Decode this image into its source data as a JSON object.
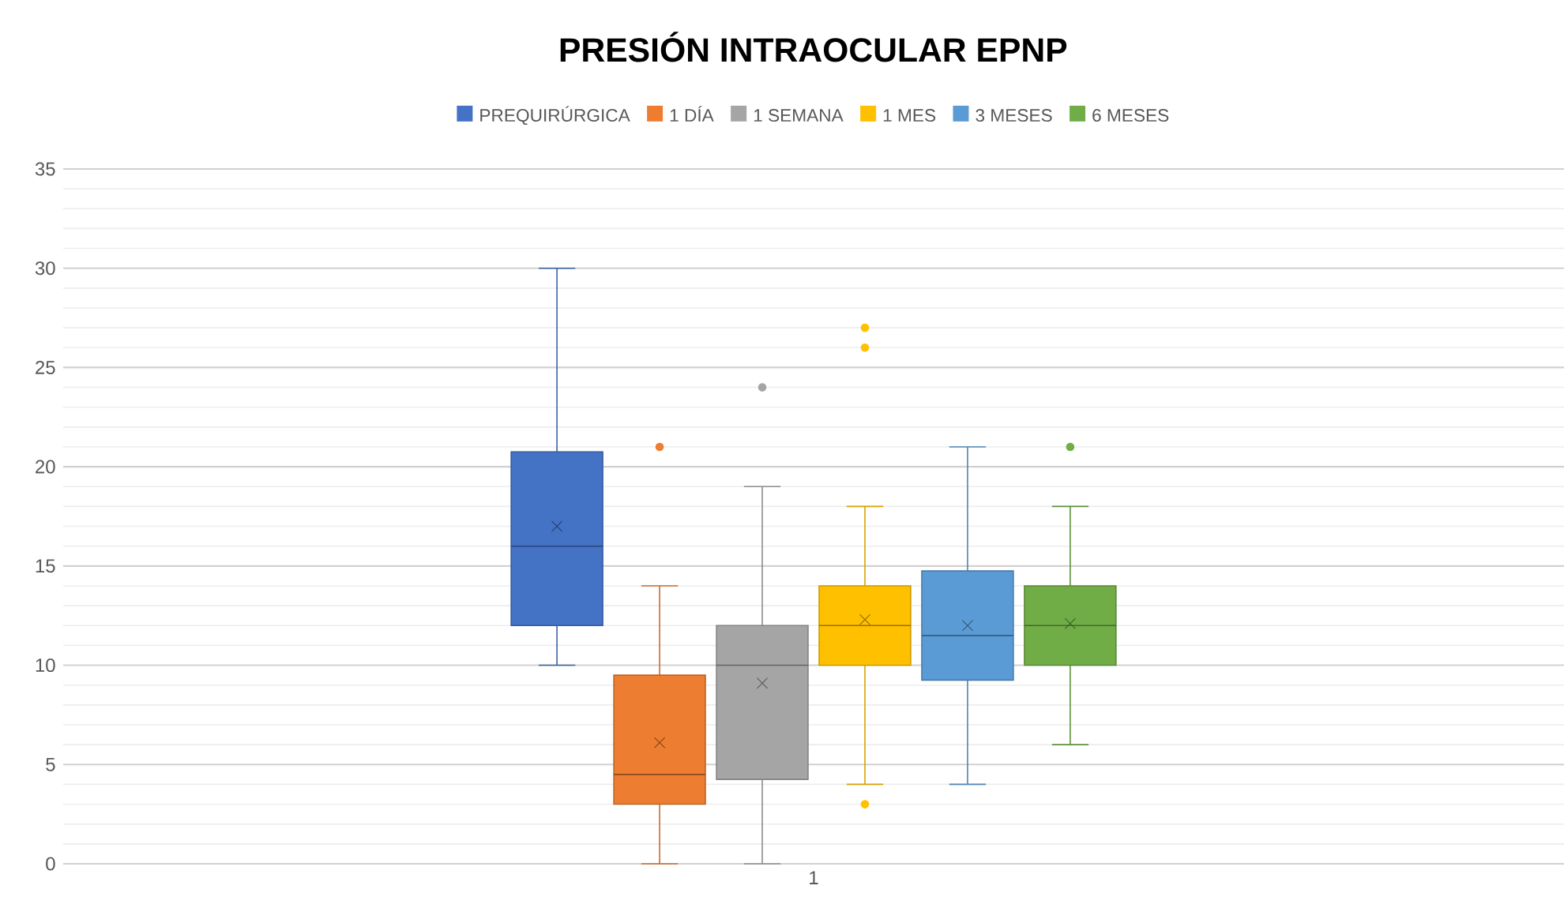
{
  "chart_data": {
    "type": "box",
    "title": "PRESIÓN INTRAOCULAR EPNP",
    "categories": [
      "1"
    ],
    "series": [
      {
        "name": "PREQUIRÚRGICA",
        "color": "#4472c4",
        "boxes": [
          {
            "low": 10,
            "q1": 12,
            "median": 16,
            "q3": 20.75,
            "high": 30,
            "mean": 17
          }
        ]
      },
      {
        "name": "1 DÍA",
        "color": "#ed7d31",
        "boxes": [
          {
            "low": 0,
            "q1": 3,
            "median": 4.5,
            "q3": 9.5,
            "high": 14,
            "mean": 6.1,
            "outliers": [
              21
            ]
          }
        ]
      },
      {
        "name": "1 SEMANA",
        "color": "#a5a5a5",
        "boxes": [
          {
            "low": 0,
            "q1": 4.25,
            "median": 10,
            "q3": 12,
            "high": 19,
            "mean": 9.1,
            "outliers": [
              24
            ]
          }
        ]
      },
      {
        "name": "1 MES",
        "color": "#ffc000",
        "boxes": [
          {
            "low": 4,
            "q1": 10,
            "median": 12,
            "q3": 14,
            "high": 18,
            "mean": 12.3,
            "outliers": [
              3,
              26,
              27
            ]
          }
        ]
      },
      {
        "name": "3 MESES",
        "color": "#5b9bd5",
        "boxes": [
          {
            "low": 4,
            "q1": 9.25,
            "median": 11.5,
            "q3": 14.75,
            "high": 21,
            "mean": 12
          }
        ]
      },
      {
        "name": "6 MESES",
        "color": "#70ad47",
        "boxes": [
          {
            "low": 6,
            "q1": 10,
            "median": 12,
            "q3": 14,
            "high": 18,
            "mean": 12.1,
            "outliers": [
              21
            ]
          }
        ]
      }
    ],
    "ylim": [
      0,
      35
    ],
    "yticks": [
      0,
      5,
      10,
      15,
      20,
      25,
      30,
      35
    ],
    "grid": "y",
    "legend": "top"
  }
}
